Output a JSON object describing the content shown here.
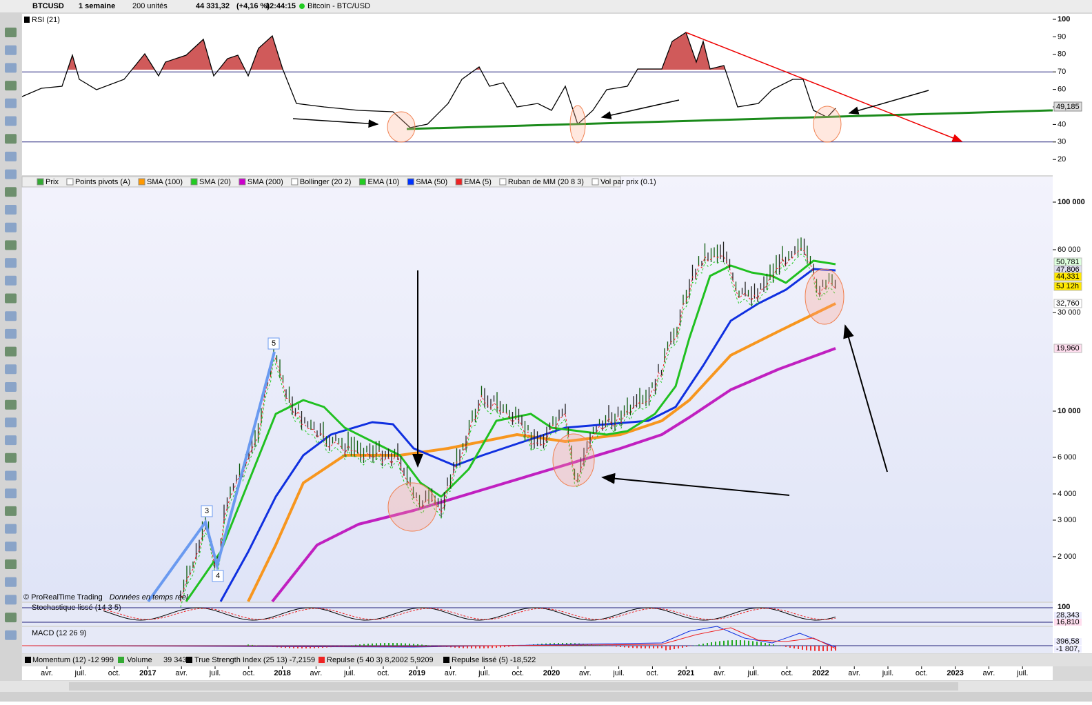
{
  "toolbar": {
    "symbol": "BTCUSD",
    "period": "1 semaine",
    "units": "200 unités",
    "price": "44 331,32",
    "change": "(+4,16 %)",
    "time": "12:44:15",
    "instrument": "Bitcoin - BTC/USD"
  },
  "rsi": {
    "label": "RSI (21)",
    "axis": [
      "100",
      "90",
      "80",
      "70",
      "60",
      "50",
      "40",
      "30",
      "20"
    ],
    "current": "49,185"
  },
  "legend": [
    "Prix",
    "Points pivots (A)",
    "SMA (100)",
    "SMA (20)",
    "SMA (200)",
    "Bollinger (20 2)",
    "EMA (10)",
    "SMA (50)",
    "EMA (5)",
    "Ruban de MM (20 8 3)",
    "Vol par prix (0.1)"
  ],
  "price_axis": [
    "100 000",
    "60 000",
    "30 000",
    "10 000",
    "6 000",
    "4 000",
    "3 000",
    "2 000"
  ],
  "price_tags": [
    "50,781",
    "47,806",
    "44,331",
    "5J 12h",
    "32,760",
    "19,960"
  ],
  "wave_labels": [
    "3",
    "4",
    "5"
  ],
  "copyright": "© ProRealTime Trading",
  "realtime": "Données en temps réel",
  "stoch": {
    "label": "Stochastique lissé (14 3 5)",
    "axis": "100",
    "tags": [
      "28,343",
      "16,810"
    ]
  },
  "macd": {
    "label": "MACD (12 26 9)",
    "tags": [
      "396,58",
      "-1 807,"
    ]
  },
  "bottom_bar": {
    "momentum": "Momentum (12) -12 999",
    "volume": "Volume",
    "volume_value": "39 343",
    "tsi": "True Strength Index (25 13) -7,2159",
    "repulse": "Repulse (5 40 3) 8,2002",
    "repulse_value": "5,9209",
    "repulse_smooth": "Repulse lissé (5) -18,522"
  },
  "x_axis": [
    "avr.",
    "juil.",
    "oct.",
    "2017",
    "avr.",
    "juil.",
    "oct.",
    "2018",
    "avr.",
    "juil.",
    "oct.",
    "2019",
    "avr.",
    "juil.",
    "oct.",
    "2020",
    "avr.",
    "juil.",
    "oct.",
    "2021",
    "avr.",
    "juil.",
    "oct.",
    "2022",
    "avr.",
    "juil.",
    "oct.",
    "2023",
    "avr.",
    "juil."
  ]
}
